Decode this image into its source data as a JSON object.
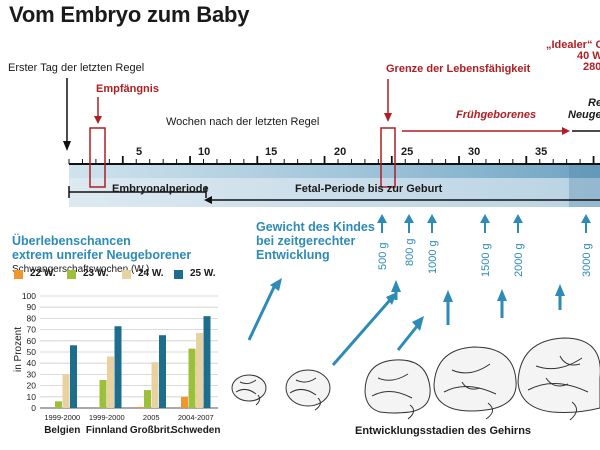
{
  "header": {
    "title": "Vom Embryo zum Baby"
  },
  "timeline": {
    "first_day_label": "Erster Tag der letzten Regel",
    "conception_label": "Empfängnis",
    "weeks_label": "Wochen nach der letzten Regel",
    "viability_label": "Grenze der Lebensfähigkeit",
    "premature_label": "Frühgeborenes",
    "ideal_line1": "„Idealer“ G",
    "ideal_line2": "40 W.",
    "ideal_line3": "280",
    "newborn_line1": "Re",
    "newborn_line2": "Neuge",
    "week_ticks": [
      "5",
      "10",
      "15",
      "20",
      "25",
      "30",
      "35"
    ],
    "embryonal_label": "Embryonalperiode",
    "fetal_label": "Fetal-Periode bis zur Geburt"
  },
  "survival": {
    "heading_line1": "Überlebenschancen",
    "heading_line2": "extrem unreifer Neugeborener",
    "subheading": "Schwangerschaftswochen (W.)",
    "ylabel": "in Prozent",
    "colors": {
      "w22": "#f0962e",
      "w23": "#9dc03a",
      "w24": "#e8d2a2",
      "w25": "#1c6e8c"
    }
  },
  "weight": {
    "heading_line1": "Gewicht des Kindes",
    "heading_line2": "bei zeitgerechter",
    "heading_line3": "Entwicklung",
    "values": [
      "500 g",
      "800 g",
      "1000 g",
      "1500 g",
      "2000 g",
      "3000 g"
    ]
  },
  "brain": {
    "caption": "Entwicklungsstadien des Gehirns"
  },
  "chart_data": {
    "type": "bar",
    "title": "Überlebenschancen extrem unreifer Neugeborener",
    "subtitle": "Schwangerschaftswochen (W.)",
    "ylabel": "in Prozent",
    "ylim": [
      0,
      100
    ],
    "yticks": [
      "0",
      "10",
      "20",
      "30",
      "40",
      "50",
      "60",
      "70",
      "80",
      "90",
      "100"
    ],
    "grid": true,
    "legend_position": "top",
    "categories": [
      {
        "name": "Belgien",
        "period": "1999-2000"
      },
      {
        "name": "Finnland",
        "period": "1999-2000"
      },
      {
        "name": "Großbrit.",
        "period": "2005"
      },
      {
        "name": "Schweden",
        "period": "2004-2007"
      }
    ],
    "series": [
      {
        "name": "22 W.",
        "color": "#f0962e",
        "values": [
          0,
          0,
          1,
          10
        ]
      },
      {
        "name": "23 W.",
        "color": "#9dc03a",
        "values": [
          6,
          25,
          16,
          53
        ]
      },
      {
        "name": "24 W.",
        "color": "#e8d2a2",
        "values": [
          30,
          46,
          41,
          67
        ]
      },
      {
        "name": "25 W.",
        "color": "#1c6e8c",
        "values": [
          56,
          73,
          65,
          82
        ]
      }
    ]
  }
}
